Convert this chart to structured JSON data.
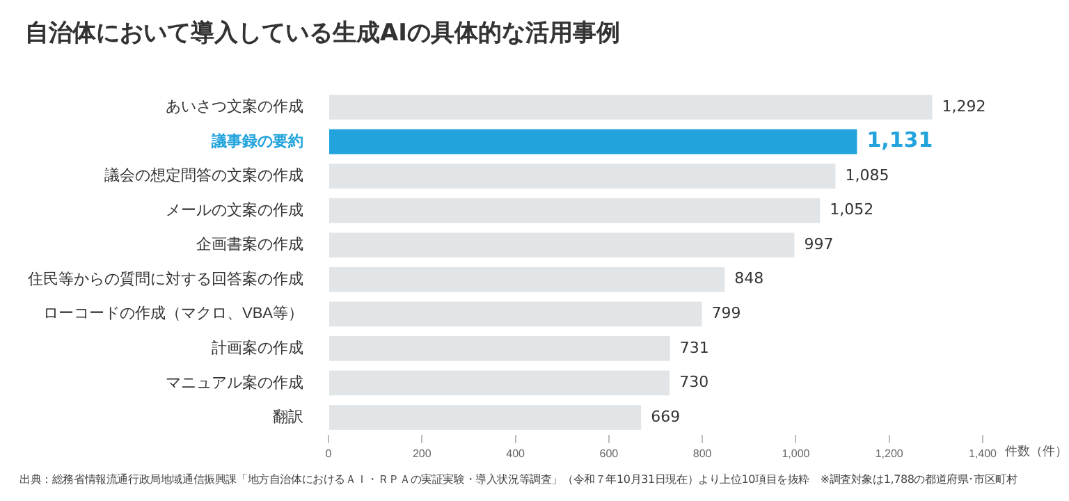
{
  "chart_data": {
    "type": "bar",
    "orientation": "horizontal",
    "title": "自治体において導入している生成AIの具体的な活用事例",
    "categories": [
      "あいさつ文案の作成",
      "議事録の要約",
      "議会の想定問答の文案の作成",
      "メールの文案の作成",
      "企画書案の作成",
      "住民等からの質問に対する回答案の作成",
      "ローコードの作成（マクロ、VBA等）",
      "計画案の作成",
      "マニュアル案の作成",
      "翻訳"
    ],
    "values": [
      1292,
      1131,
      1085,
      1052,
      997,
      848,
      799,
      731,
      730,
      669
    ],
    "value_labels": [
      "1,292",
      "1,131",
      "1,085",
      "1,052",
      "997",
      "848",
      "799",
      "731",
      "730",
      "669"
    ],
    "colors": [
      "#e1e5e7",
      "#22a3dc",
      "#e1e5e7",
      "#e1e5e7",
      "#e1e5e7",
      "#e1e5e7",
      "#e1e5e7",
      "#e1e5e7",
      "#e1e5e7",
      "#e1e5e7"
    ],
    "xlim": [
      0,
      1400
    ],
    "xticks": [
      0,
      200,
      400,
      600,
      800,
      {
        "value": 1000,
        "label": "1,000"
      },
      {
        "value": 1200,
        "label": "1,200"
      },
      {
        "value": 1400,
        "label": "1,400"
      }
    ],
    "xlabel": "件数（件）",
    "grid": false,
    "legend": false,
    "annotations": [
      "出典：総務省情報流通行政局地域通信振興課「地方自治体におけるＡＩ・ＲＰＡの実証実験・導入状況等調査」（令和７年10月31日現在）より上位10項目を抜粋　※調査対象は1,788の都道府県･市区町村"
    ]
  }
}
